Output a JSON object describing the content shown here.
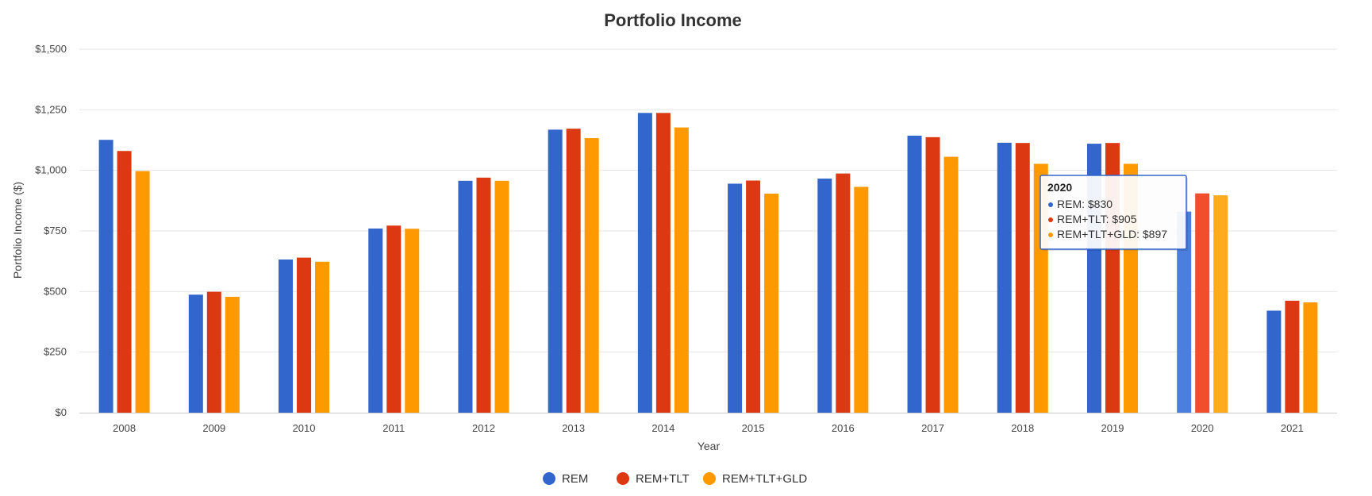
{
  "chart_data": {
    "type": "bar",
    "title": "Portfolio Income",
    "xlabel": "Year",
    "ylabel": "Portfolio Income ($)",
    "ylim": [
      0,
      1500
    ],
    "yticks": [
      "$0",
      "$250",
      "$500",
      "$750",
      "$1,000",
      "$1,250",
      "$1,500"
    ],
    "ytick_values": [
      0,
      250,
      500,
      750,
      1000,
      1250,
      1500
    ],
    "grid": true,
    "legend_position": "bottom-center",
    "categories": [
      "2008",
      "2009",
      "2010",
      "2011",
      "2012",
      "2013",
      "2014",
      "2015",
      "2016",
      "2017",
      "2018",
      "2019",
      "2020",
      "2021"
    ],
    "series": [
      {
        "name": "REM",
        "color": "#3366cc",
        "values": [
          1126,
          487,
          632,
          760,
          957,
          1168,
          1237,
          945,
          966,
          1143,
          1114,
          1110,
          830,
          421
        ]
      },
      {
        "name": "REM+TLT",
        "color": "#dc3912",
        "values": [
          1080,
          499,
          640,
          772,
          970,
          1172,
          1237,
          958,
          987,
          1137,
          1113,
          1113,
          905,
          462
        ]
      },
      {
        "name": "REM+TLT+GLD",
        "color": "#ff9900",
        "values": [
          997,
          478,
          623,
          759,
          957,
          1133,
          1177,
          904,
          932,
          1056,
          1027,
          1027,
          897,
          455
        ]
      }
    ],
    "tooltip": {
      "title": "2020",
      "lines": [
        "REM: $830",
        "REM+TLT: $905",
        "REM+TLT+GLD: $897"
      ],
      "category_index": 12
    }
  }
}
